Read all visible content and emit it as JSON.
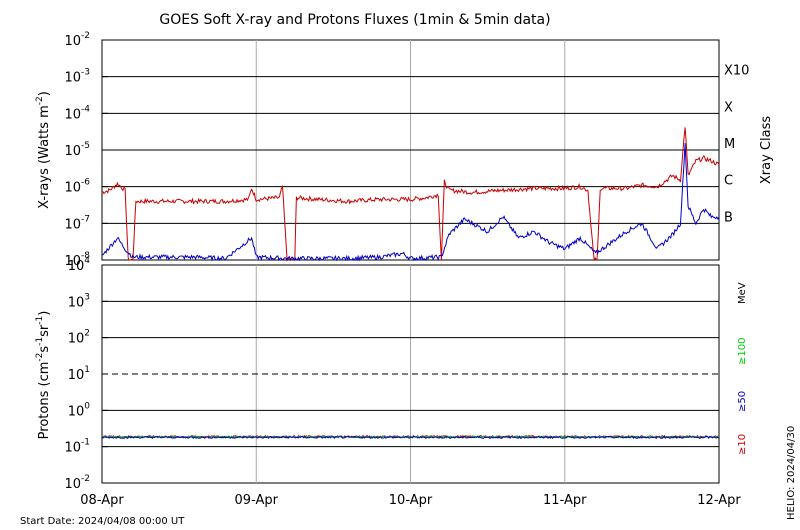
{
  "chart_data": [
    {
      "type": "line",
      "title": "GOES Soft X-ray and Protons Fluxes   (1min & 5min data)",
      "ylabel_main": "X-rays (Watts m",
      "ylabel_exp": "-2",
      "ylabel_close": ")",
      "y_scale": "log",
      "ylim": [
        1e-08,
        0.01
      ],
      "y_ticks": [
        {
          "base": "10",
          "exp": "-8"
        },
        {
          "base": "10",
          "exp": "-7"
        },
        {
          "base": "10",
          "exp": "-6"
        },
        {
          "base": "10",
          "exp": "-5"
        },
        {
          "base": "10",
          "exp": "-4"
        },
        {
          "base": "10",
          "exp": "-3"
        },
        {
          "base": "10",
          "exp": "-2"
        }
      ],
      "right_axis_label": "Xray Class",
      "classes": [
        {
          "label": "B",
          "level": 1e-07
        },
        {
          "label": "C",
          "level": 1e-06
        },
        {
          "label": "M",
          "level": 1e-05
        },
        {
          "label": "X",
          "level": 0.0001
        },
        {
          "label": "X10",
          "level": 0.001
        }
      ],
      "x_ticks": [
        "08-Apr",
        "09-Apr",
        "10-Apr",
        "11-Apr",
        "12-Apr"
      ],
      "x_days": [
        0,
        1,
        2,
        3,
        4
      ],
      "grid": true,
      "series": [
        {
          "color": "#cc0000",
          "points": [
            [
              0.0,
              7e-07
            ],
            [
              0.05,
              8e-07
            ],
            [
              0.1,
              1.2e-06
            ],
            [
              0.15,
              8e-07
            ],
            [
              0.17,
              1e-08
            ],
            [
              0.2,
              1e-08
            ],
            [
              0.22,
              4e-07
            ],
            [
              0.4,
              4e-07
            ],
            [
              0.6,
              4e-07
            ],
            [
              0.8,
              4e-07
            ],
            [
              0.95,
              4.5e-07
            ],
            [
              0.97,
              9e-07
            ],
            [
              1.0,
              4.5e-07
            ],
            [
              1.15,
              5e-07
            ],
            [
              1.17,
              1e-06
            ],
            [
              1.2,
              1e-08
            ],
            [
              1.25,
              1e-08
            ],
            [
              1.26,
              5e-07
            ],
            [
              1.4,
              4.5e-07
            ],
            [
              1.6,
              4e-07
            ],
            [
              1.8,
              4.5e-07
            ],
            [
              2.0,
              4.5e-07
            ],
            [
              2.1,
              5e-07
            ],
            [
              2.18,
              6e-07
            ],
            [
              2.2,
              1e-08
            ],
            [
              2.22,
              1.4e-06
            ],
            [
              2.25,
              8e-07
            ],
            [
              2.4,
              7e-07
            ],
            [
              2.6,
              8e-07
            ],
            [
              2.8,
              9e-07
            ],
            [
              3.0,
              9e-07
            ],
            [
              3.1,
              1e-06
            ],
            [
              3.15,
              8e-07
            ],
            [
              3.19,
              1e-08
            ],
            [
              3.21,
              1e-08
            ],
            [
              3.23,
              9e-07
            ],
            [
              3.4,
              9e-07
            ],
            [
              3.5,
              1.1e-06
            ],
            [
              3.6,
              1e-06
            ],
            [
              3.7,
              2e-06
            ],
            [
              3.75,
              1.5e-06
            ],
            [
              3.78,
              4.5e-05
            ],
            [
              3.8,
              2e-06
            ],
            [
              3.85,
              5e-06
            ],
            [
              3.9,
              6e-06
            ],
            [
              3.95,
              5e-06
            ],
            [
              4.0,
              4e-06
            ]
          ]
        },
        {
          "color": "#0000cc",
          "points": [
            [
              0.0,
              1.3e-08
            ],
            [
              0.1,
              4e-08
            ],
            [
              0.15,
              2e-08
            ],
            [
              0.2,
              1.2e-08
            ],
            [
              0.4,
              1.2e-08
            ],
            [
              0.6,
              1.2e-08
            ],
            [
              0.8,
              1.1e-08
            ],
            [
              0.97,
              4e-08
            ],
            [
              1.0,
              1.2e-08
            ],
            [
              1.2,
              1.1e-08
            ],
            [
              1.4,
              1.1e-08
            ],
            [
              1.6,
              1.1e-08
            ],
            [
              1.8,
              1.2e-08
            ],
            [
              1.95,
              1.5e-08
            ],
            [
              2.0,
              1.1e-08
            ],
            [
              2.2,
              1.2e-08
            ],
            [
              2.25,
              5e-08
            ],
            [
              2.35,
              1.3e-07
            ],
            [
              2.5,
              6e-08
            ],
            [
              2.6,
              1.5e-07
            ],
            [
              2.7,
              4e-08
            ],
            [
              2.8,
              6e-08
            ],
            [
              2.9,
              3e-08
            ],
            [
              3.0,
              2e-08
            ],
            [
              3.1,
              4e-08
            ],
            [
              3.2,
              1.5e-08
            ],
            [
              3.3,
              3e-08
            ],
            [
              3.4,
              6e-08
            ],
            [
              3.5,
              1e-07
            ],
            [
              3.6,
              2e-08
            ],
            [
              3.7,
              5e-08
            ],
            [
              3.75,
              1e-07
            ],
            [
              3.78,
              1.5e-05
            ],
            [
              3.8,
              3e-07
            ],
            [
              3.85,
              1e-07
            ],
            [
              3.9,
              2.5e-07
            ],
            [
              3.95,
              1.5e-07
            ],
            [
              4.0,
              1.5e-07
            ]
          ]
        }
      ]
    },
    {
      "type": "line",
      "ylabel_pre": "Protons (cm",
      "ylabel_exp1": "-2",
      "ylabel_mid1": "s",
      "ylabel_exp2": "-1",
      "ylabel_mid2": "sr",
      "ylabel_exp3": "-1",
      "ylabel_close": ")",
      "y_scale": "log",
      "ylim": [
        0.01,
        10000
      ],
      "y_ticks": [
        {
          "base": "10",
          "exp": "-2"
        },
        {
          "base": "10",
          "exp": "-1"
        },
        {
          "base": "10",
          "exp": "0"
        },
        {
          "base": "10",
          "exp": "1"
        },
        {
          "base": "10",
          "exp": "2"
        },
        {
          "base": "10",
          "exp": "3"
        },
        {
          "base": "10",
          "exp": "4"
        }
      ],
      "threshold": {
        "level": 10,
        "style": "dashed"
      },
      "energy_unit": "MeV",
      "energy_channels": [
        {
          "label": "≥100",
          "color": "#00cc00"
        },
        {
          "label": "≥50",
          "color": "#0000cc"
        },
        {
          "label": "≥10",
          "color": "#cc0000"
        }
      ],
      "series": [
        {
          "color": "#cc0000",
          "level": 0.19
        },
        {
          "color": "#00cc00",
          "level": 0.185
        },
        {
          "color": "#0000cc",
          "level": 0.18
        }
      ],
      "x_ticks": [
        "08-Apr",
        "09-Apr",
        "10-Apr",
        "11-Apr",
        "12-Apr"
      ]
    }
  ],
  "footer": {
    "start_date": "Start Date: 2024/04/08 00:00 UT",
    "stamp": "HELIO: 2024/04/30"
  }
}
